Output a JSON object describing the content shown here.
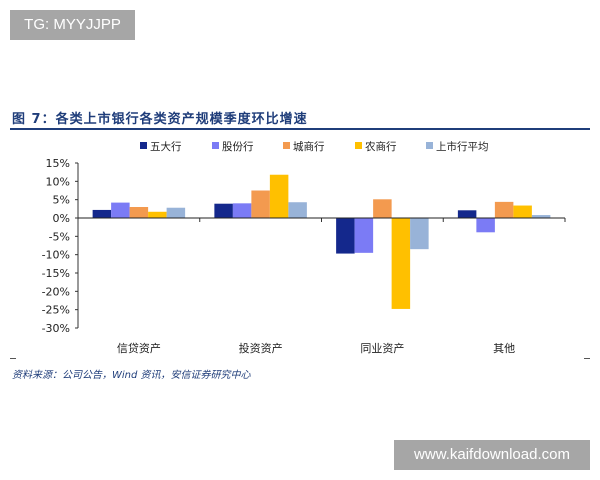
{
  "badge": "TG: MYYJJPP",
  "watermark": "www.kaifdownload.com",
  "source": "资料来源：公司公告，Wind 资讯，安信证券研究中心",
  "chart_data": {
    "type": "bar",
    "title": "图 7：各类上市银行各类资产规模季度环比增速",
    "categories": [
      "信贷资产",
      "投资资产",
      "同业资产",
      "其他"
    ],
    "series": [
      {
        "name": "五大行",
        "color": "#14288c",
        "values": [
          2.2,
          3.9,
          -9.7,
          2.1
        ]
      },
      {
        "name": "股份行",
        "color": "#7b7bf5",
        "values": [
          4.2,
          4.0,
          -9.5,
          -3.9
        ]
      },
      {
        "name": "城商行",
        "color": "#f39a4f",
        "values": [
          3.0,
          7.5,
          5.1,
          4.4
        ]
      },
      {
        "name": "农商行",
        "color": "#ffc000",
        "values": [
          1.7,
          11.8,
          -24.8,
          3.4
        ]
      },
      {
        "name": "上市行平均",
        "color": "#98b3d8",
        "values": [
          2.8,
          4.3,
          -8.5,
          0.8
        ]
      }
    ],
    "yticks": [
      "15%",
      "10%",
      "5%",
      "0%",
      "-5%",
      "-10%",
      "-15%",
      "-20%",
      "-25%",
      "-30%"
    ],
    "ylim": [
      -30,
      15
    ],
    "xlabel": "",
    "ylabel": "",
    "grid": false,
    "legend": "top"
  }
}
